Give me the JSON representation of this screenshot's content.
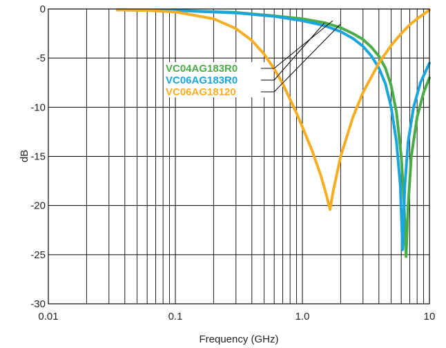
{
  "chart_data": {
    "type": "line",
    "xlabel": "Frequency (GHz)",
    "ylabel": "dB",
    "xscale": "log",
    "xlim": [
      0.01,
      10
    ],
    "ylim": [
      -30,
      0
    ],
    "grid": true,
    "x_ticks": [
      {
        "value": 0.01,
        "label": "0.01"
      },
      {
        "value": 0.1,
        "label": "0.1"
      },
      {
        "value": 1,
        "label": "1.0"
      },
      {
        "value": 10,
        "label": "10"
      }
    ],
    "y_ticks": [
      {
        "value": 0,
        "label": "0"
      },
      {
        "value": -5,
        "label": "-5"
      },
      {
        "value": -10,
        "label": "-10"
      },
      {
        "value": -15,
        "label": "-15"
      },
      {
        "value": -20,
        "label": "-20"
      },
      {
        "value": -25,
        "label": "-25"
      },
      {
        "value": -30,
        "label": "-30"
      }
    ],
    "series": [
      {
        "name": "VC04AG183R0",
        "color": "#4aac47",
        "points": [
          [
            0.035,
            -0.1
          ],
          [
            0.1,
            -0.15
          ],
          [
            0.3,
            -0.35
          ],
          [
            0.6,
            -0.7
          ],
          [
            1.0,
            -1.0
          ],
          [
            1.5,
            -1.4
          ],
          [
            2.0,
            -1.9
          ],
          [
            2.5,
            -2.5
          ],
          [
            3.0,
            -3.1
          ],
          [
            3.5,
            -3.9
          ],
          [
            4.0,
            -4.8
          ],
          [
            4.5,
            -6.0
          ],
          [
            5.0,
            -7.8
          ],
          [
            5.5,
            -10.5
          ],
          [
            6.0,
            -15.0
          ],
          [
            6.3,
            -19.5
          ],
          [
            6.55,
            -25.2
          ],
          [
            6.8,
            -20.0
          ],
          [
            7.2,
            -15.0
          ],
          [
            8.0,
            -11.0
          ],
          [
            9.0,
            -8.5
          ],
          [
            10.0,
            -7.0
          ]
        ]
      },
      {
        "name": "VC06AG183R0",
        "color": "#1aa5dc",
        "points": [
          [
            0.035,
            -0.1
          ],
          [
            0.1,
            -0.15
          ],
          [
            0.3,
            -0.4
          ],
          [
            0.6,
            -0.75
          ],
          [
            1.0,
            -1.2
          ],
          [
            1.5,
            -1.7
          ],
          [
            2.0,
            -2.3
          ],
          [
            2.5,
            -3.0
          ],
          [
            3.0,
            -3.8
          ],
          [
            3.5,
            -4.8
          ],
          [
            4.0,
            -6.0
          ],
          [
            4.5,
            -7.6
          ],
          [
            5.0,
            -10.0
          ],
          [
            5.5,
            -13.5
          ],
          [
            5.9,
            -18.0
          ],
          [
            6.15,
            -24.5
          ],
          [
            6.4,
            -18.0
          ],
          [
            6.8,
            -13.5
          ],
          [
            7.5,
            -10.0
          ],
          [
            8.5,
            -7.5
          ],
          [
            10.0,
            -5.5
          ]
        ]
      },
      {
        "name": "VC06AG18120",
        "color": "#f5ae24",
        "points": [
          [
            0.035,
            -0.1
          ],
          [
            0.06,
            -0.15
          ],
          [
            0.1,
            -0.3
          ],
          [
            0.2,
            -1.0
          ],
          [
            0.3,
            -2.0
          ],
          [
            0.4,
            -3.2
          ],
          [
            0.5,
            -4.6
          ],
          [
            0.6,
            -6.1
          ],
          [
            0.7,
            -7.6
          ],
          [
            0.8,
            -9.2
          ],
          [
            0.9,
            -10.6
          ],
          [
            1.0,
            -12.0
          ],
          [
            1.2,
            -14.5
          ],
          [
            1.4,
            -17.0
          ],
          [
            1.55,
            -19.0
          ],
          [
            1.65,
            -20.4
          ],
          [
            1.75,
            -18.5
          ],
          [
            2.0,
            -15.0
          ],
          [
            2.5,
            -11.0
          ],
          [
            3.0,
            -8.5
          ],
          [
            4.0,
            -5.5
          ],
          [
            5.0,
            -3.7
          ],
          [
            6.0,
            -2.5
          ],
          [
            7.0,
            -1.6
          ],
          [
            8.0,
            -1.0
          ],
          [
            10.0,
            -0.1
          ]
        ]
      }
    ],
    "legend": {
      "placement": "center-left",
      "callouts": true
    }
  }
}
